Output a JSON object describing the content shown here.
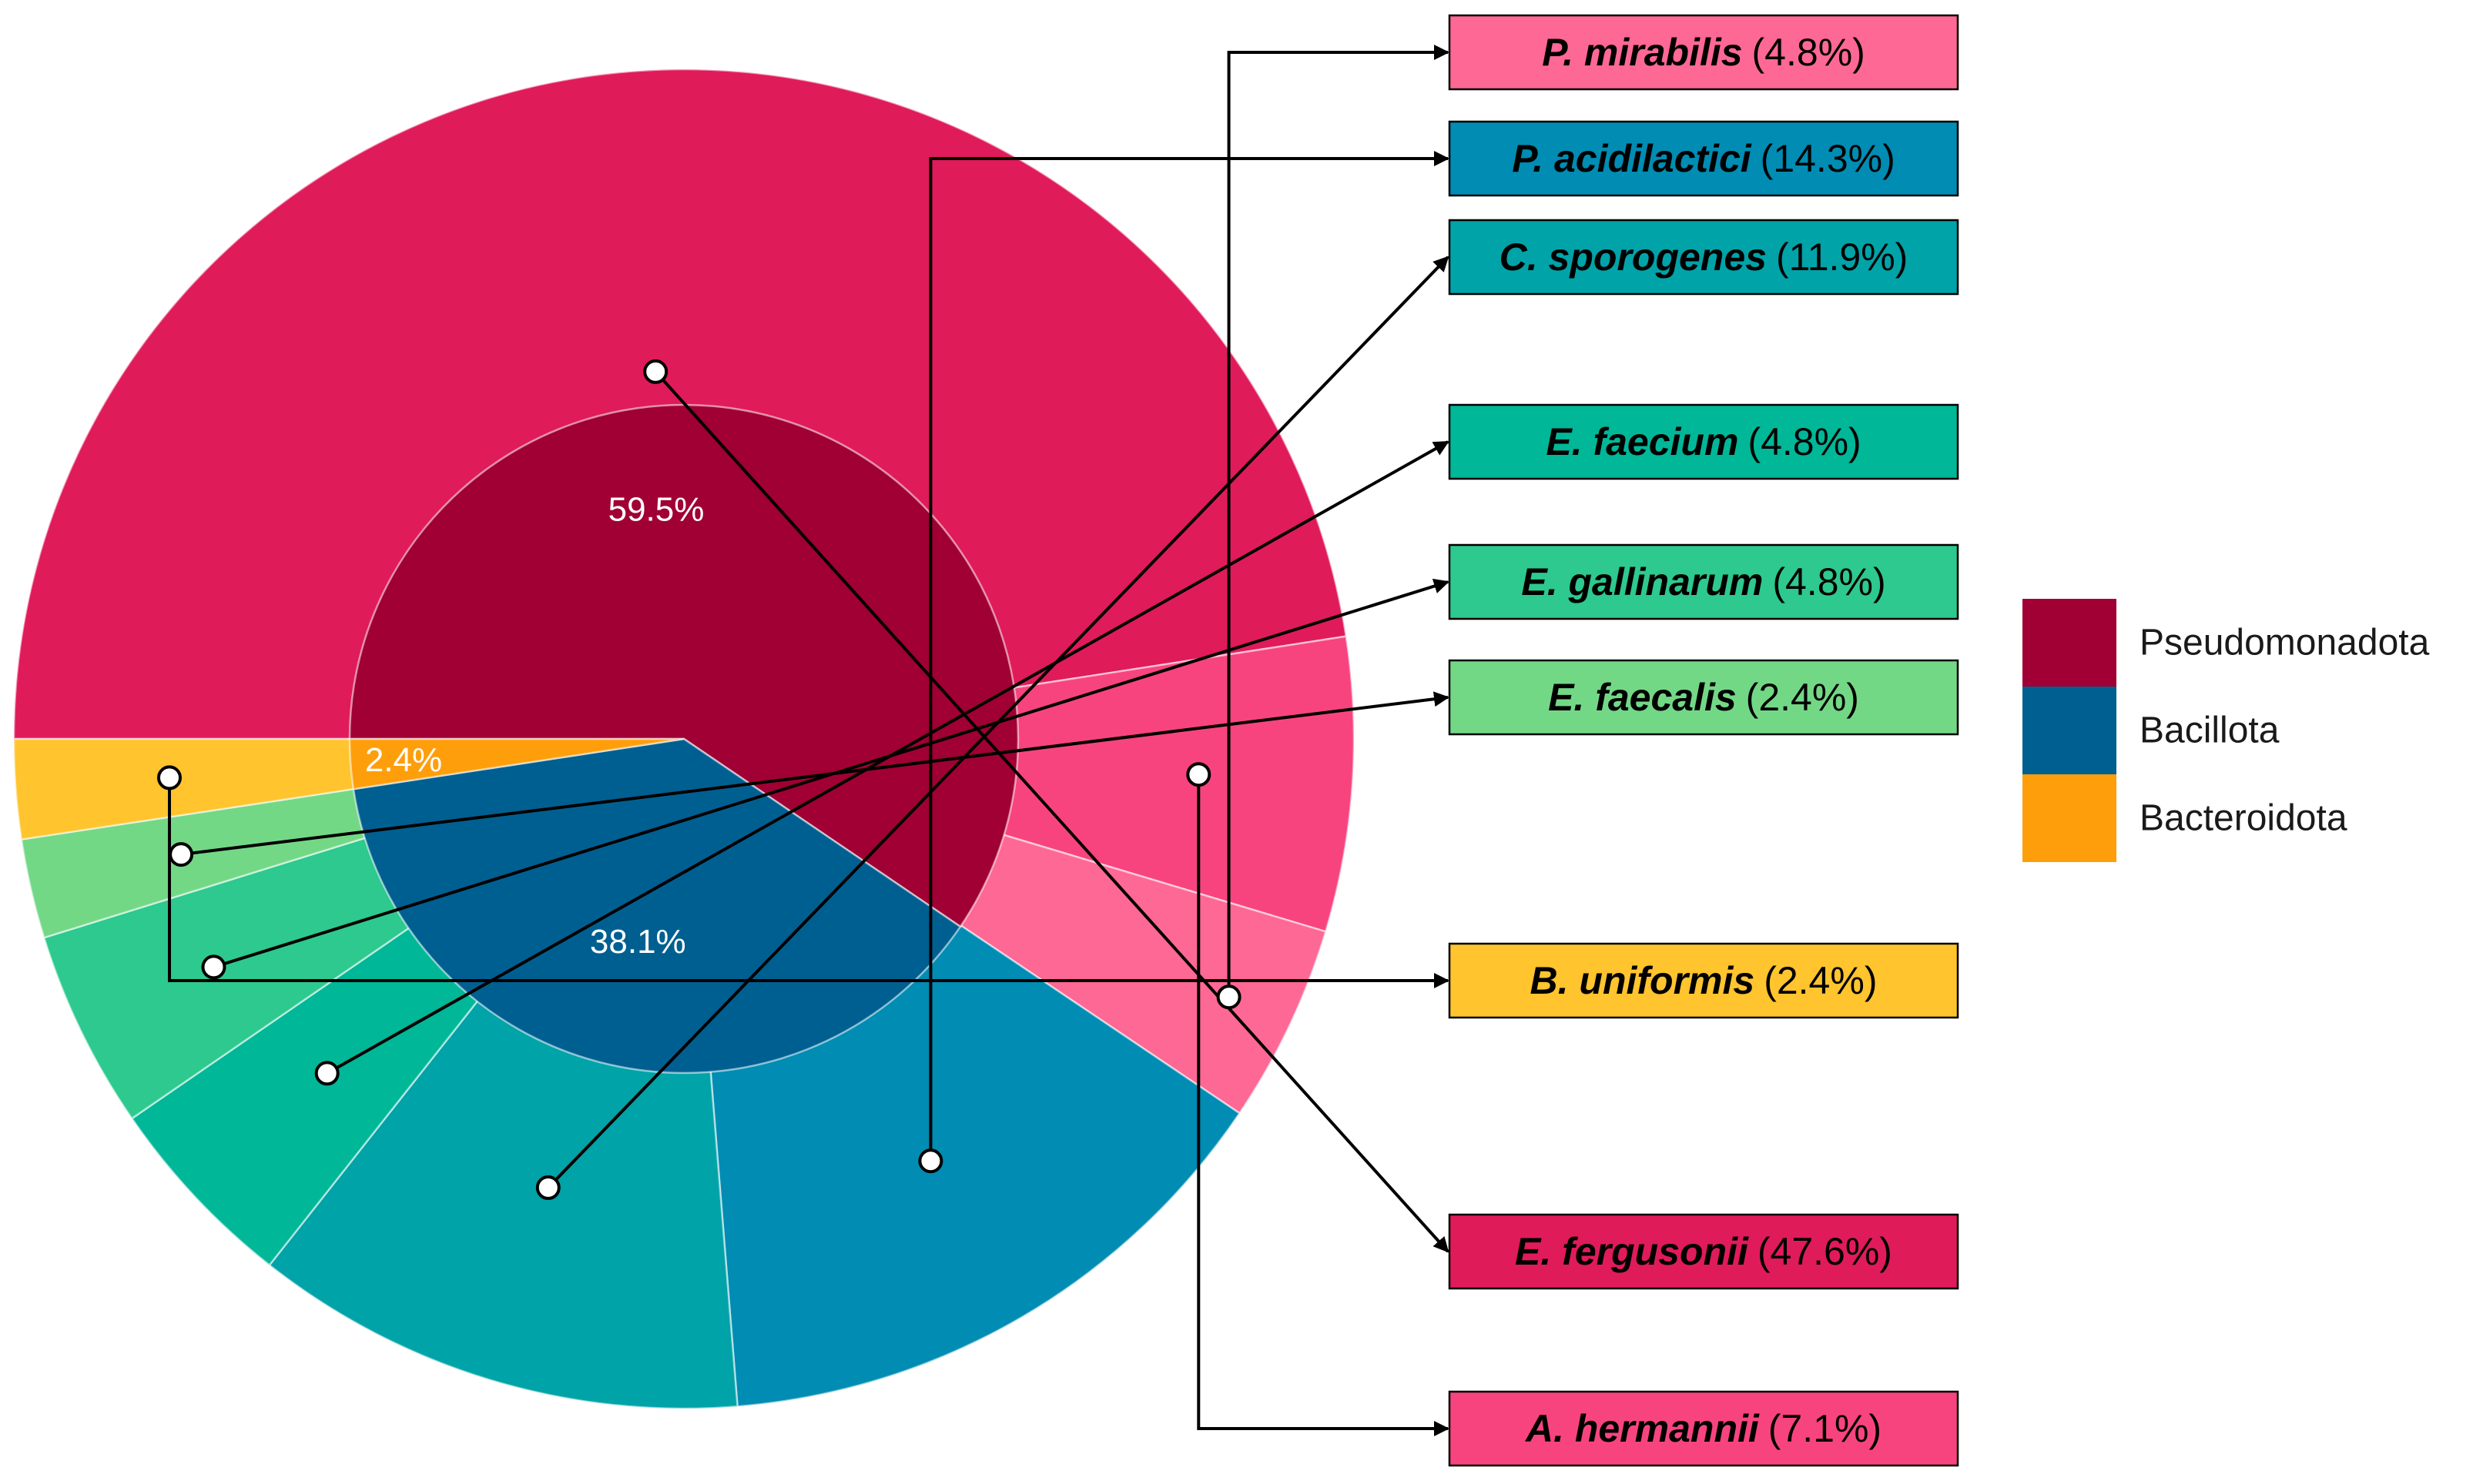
{
  "chart_data": {
    "type": "pie",
    "variant": "sunburst",
    "inner_ring": [
      {
        "name": "Pseudomonadota",
        "value": 59.5,
        "label": "59.5%",
        "color": "#A00033"
      },
      {
        "name": "Bacillota",
        "value": 38.1,
        "label": "38.1%",
        "color": "#005F91"
      },
      {
        "name": "Bacteroidota",
        "value": 2.4,
        "label": "2.4%",
        "color": "#FF9E0B"
      }
    ],
    "outer_ring": [
      {
        "species": "E. fergusonii",
        "value_label": "(47.6%)",
        "value": 47.6,
        "group": "Pseudomonadota",
        "color": "#E01B5A"
      },
      {
        "species": "A. hermannii",
        "value_label": "(7.1%)",
        "value": 7.1,
        "group": "Pseudomonadota",
        "color": "#F7447F"
      },
      {
        "species": "P. mirabilis",
        "value_label": "(4.8%)",
        "value": 4.8,
        "group": "Pseudomonadota",
        "color": "#FE6894"
      },
      {
        "species": "P. acidilactici",
        "value_label": "(14.3%)",
        "value": 14.3,
        "group": "Bacillota",
        "color": "#008CB3"
      },
      {
        "species": "C. sporogenes",
        "value_label": "(11.9%)",
        "value": 11.9,
        "group": "Bacillota",
        "color": "#00A3A8"
      },
      {
        "species": "E. faecium",
        "value_label": "(4.8%)",
        "value": 4.8,
        "group": "Bacillota",
        "color": "#00B798"
      },
      {
        "species": "E. gallinarum",
        "value_label": "(4.8%)",
        "value": 4.8,
        "group": "Bacillota",
        "color": "#2DC98E"
      },
      {
        "species": "E. faecalis",
        "value_label": "(2.4%)",
        "value": 2.4,
        "group": "Bacillota",
        "color": "#73D886"
      },
      {
        "species": "B. uniformis",
        "value_label": "(2.4%)",
        "value": 2.4,
        "group": "Bacteroidota",
        "color": "#FFC42E"
      }
    ],
    "legend": {
      "placement": "right",
      "entries": [
        {
          "name": "Pseudomonadota",
          "color": "#A00033"
        },
        {
          "name": "Bacillota",
          "color": "#005F91"
        },
        {
          "name": "Bacteroidota",
          "color": "#FF9E0B"
        }
      ]
    }
  }
}
